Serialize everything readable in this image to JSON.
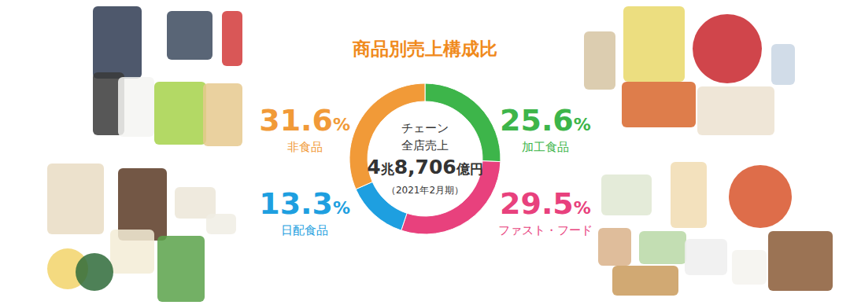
{
  "chart_data": {
    "type": "donut",
    "title": "商品別売上構成比",
    "annotations": [
      "チェーン",
      "全店売上",
      "4兆8,706億円",
      "（2021年2月期）"
    ],
    "categories": [
      "加工食品",
      "ファスト・フード",
      "日配食品",
      "非食品"
    ],
    "values": [
      25.6,
      29.5,
      13.3,
      31.6
    ],
    "value_labels": [
      "25.6%",
      "29.5%",
      "13.3%",
      "31.6%"
    ],
    "colors": [
      "#3db54a",
      "#e8417d",
      "#1e9fe0",
      "#f19a38"
    ],
    "data_labels": true
  }
}
